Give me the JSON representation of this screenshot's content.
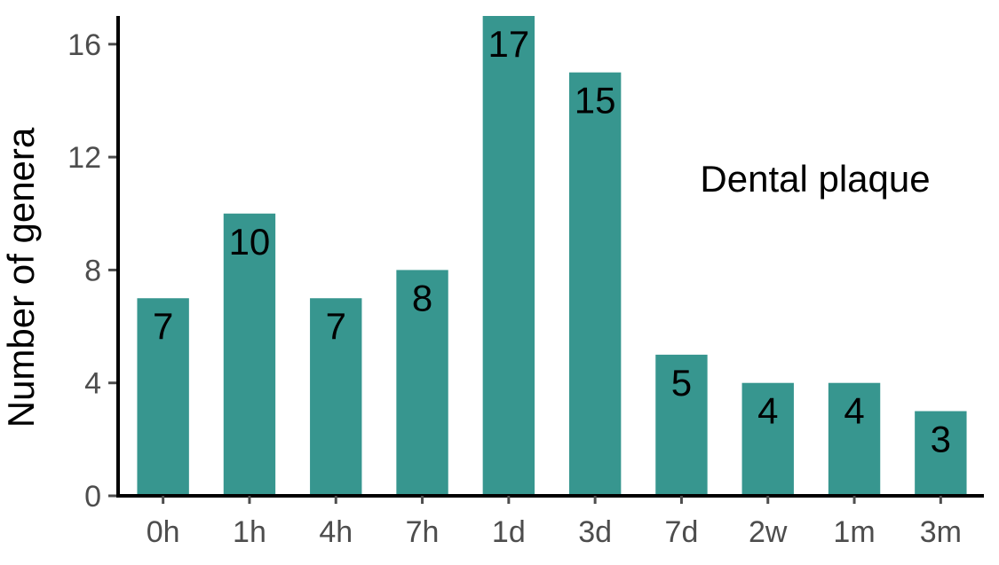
{
  "chart_data": {
    "type": "bar",
    "categories": [
      "0h",
      "1h",
      "4h",
      "7h",
      "1d",
      "3d",
      "7d",
      "2w",
      "1m",
      "3m"
    ],
    "values": [
      7,
      10,
      7,
      8,
      17,
      15,
      5,
      4,
      4,
      3
    ],
    "data_labels": [
      "7",
      "10",
      "7",
      "8",
      "17",
      "15",
      "5",
      "4",
      "4",
      "3"
    ],
    "title": "",
    "xlabel": "",
    "ylabel": "Number of genera",
    "annotation": "Dental plaque",
    "ylim": [
      0,
      17
    ],
    "yticks": [
      0,
      4,
      8,
      12,
      16
    ],
    "grid": false,
    "bar_color": "#37968f",
    "axis_color": "#000000",
    "tick_label_color": "#4d4d4d"
  }
}
